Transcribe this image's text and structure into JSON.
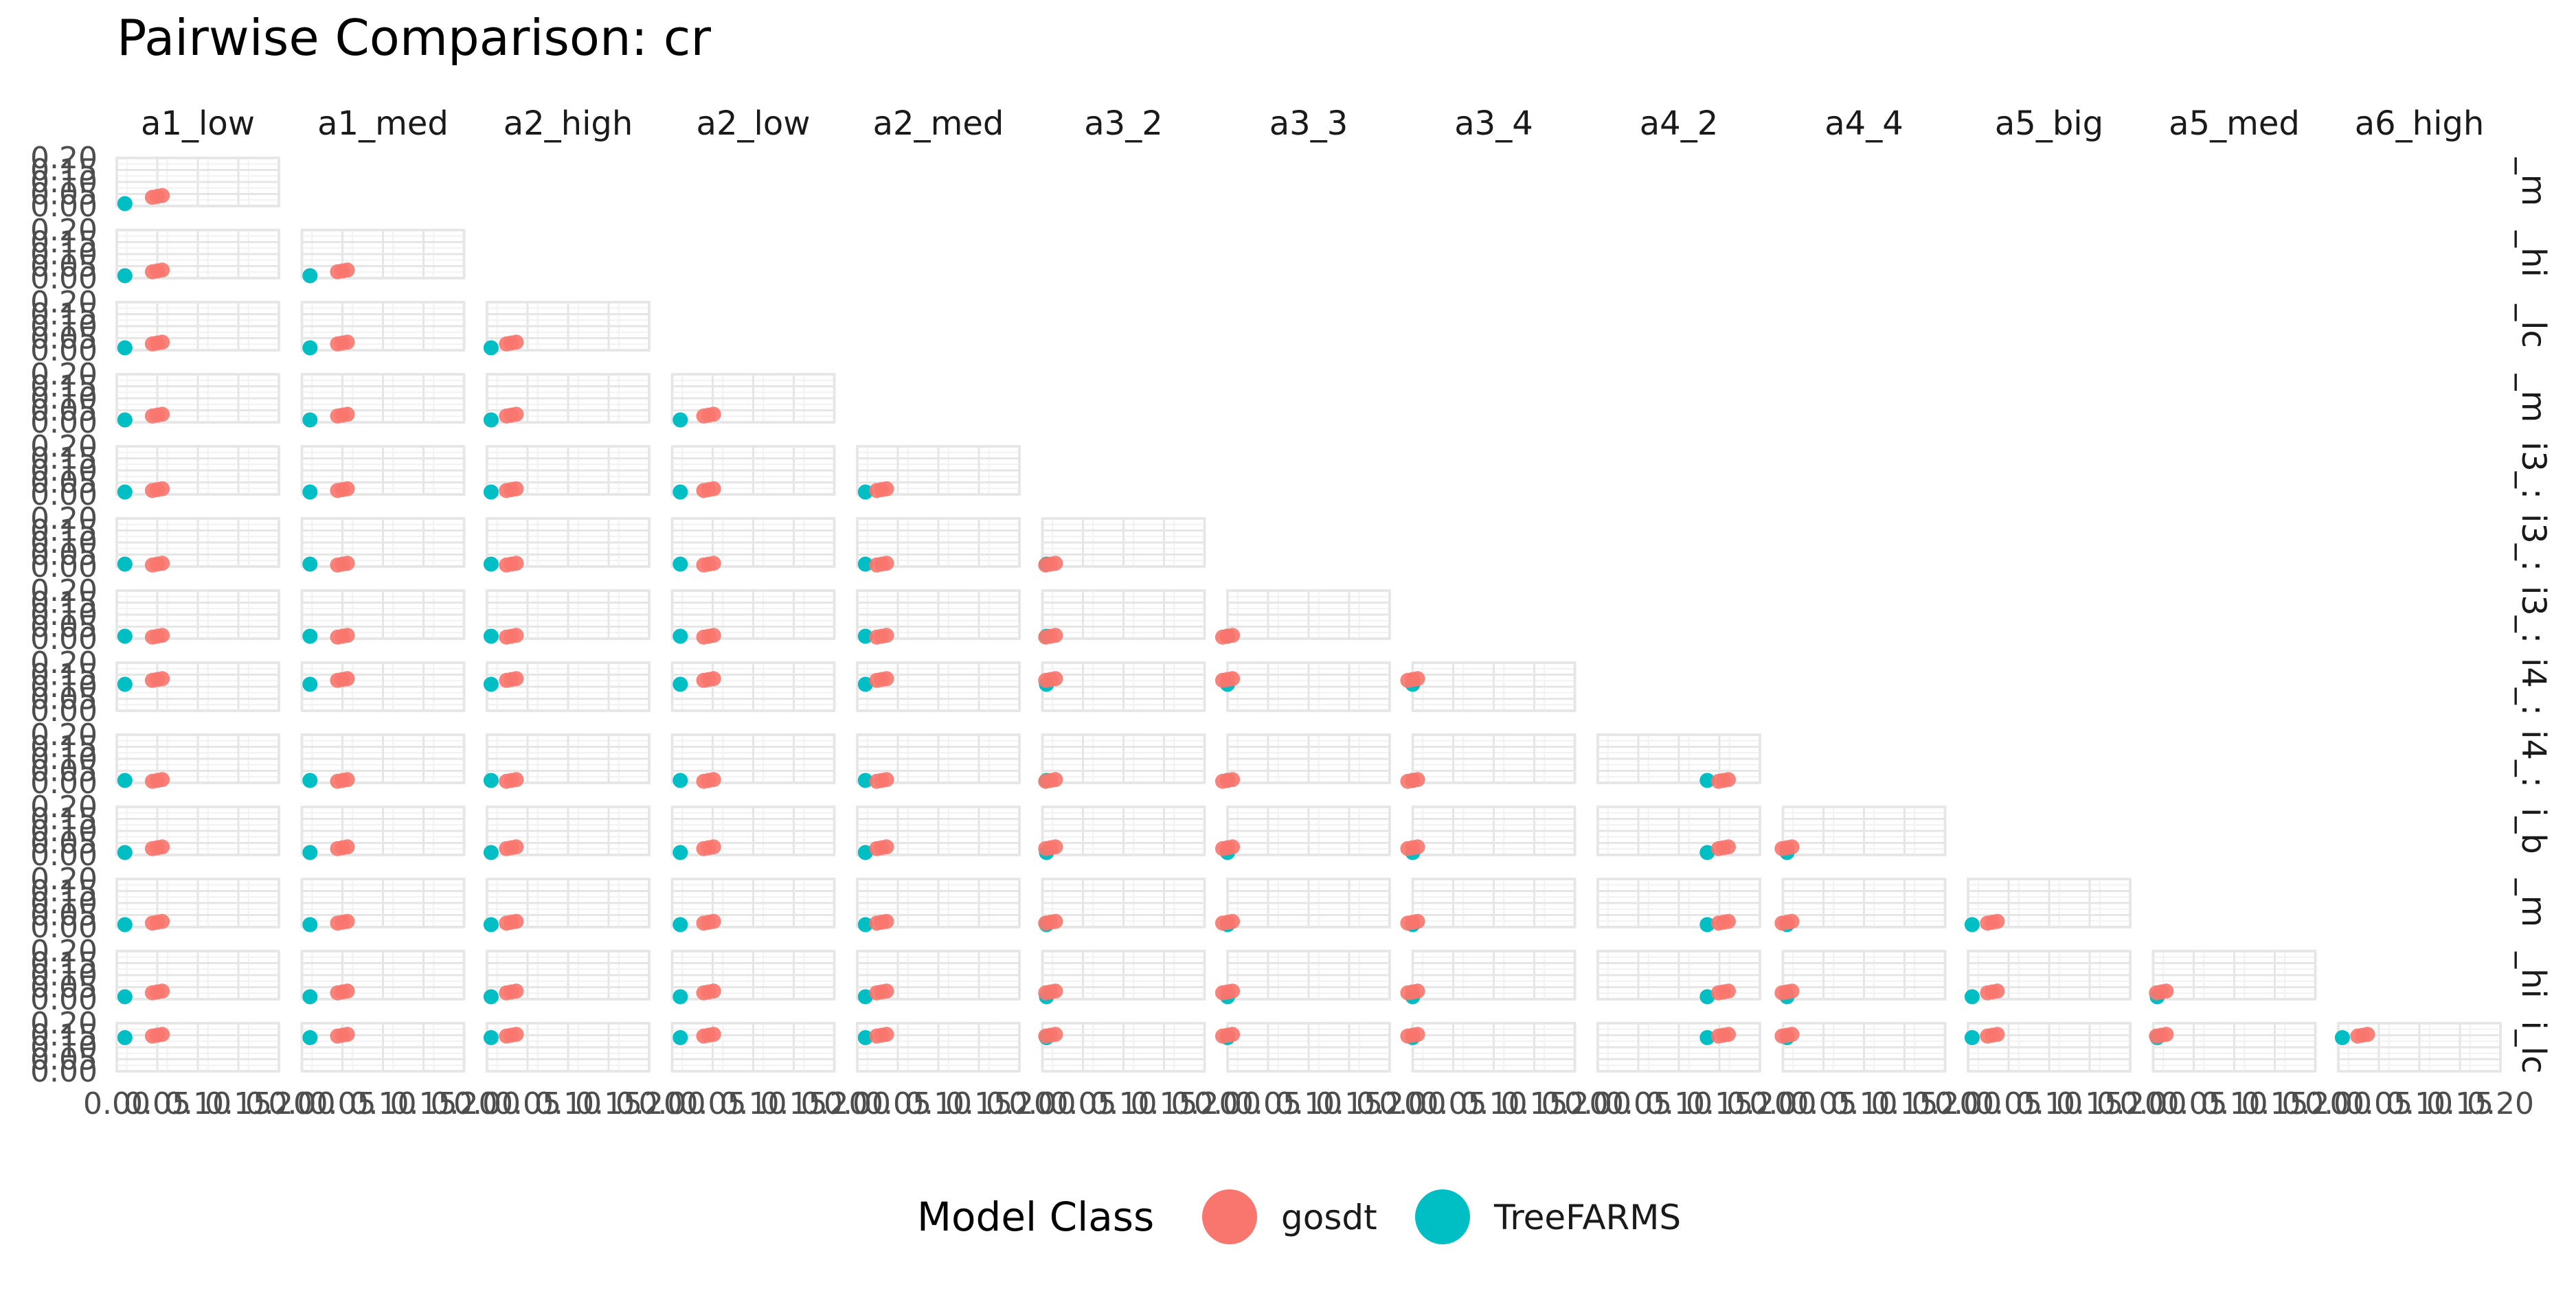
{
  "chart_data": {
    "type": "scatter",
    "title": "Pairwise Comparison: cr",
    "column_labels": [
      "a1_low",
      "a1_med",
      "a2_high",
      "a2_low",
      "a2_med",
      "a3_2",
      "a3_3",
      "a3_4",
      "a4_2",
      "a4_4",
      "a5_big",
      "a5_med",
      "a6_high"
    ],
    "row_labels": [
      "_m",
      "_hi",
      "_lc",
      "_m",
      "i3_:",
      "i3_:",
      "i3_:",
      "i4_:",
      "i4_:",
      "i_b",
      "_m",
      "_hi",
      "i_lc"
    ],
    "x_ticks": [
      "0.00",
      "0.05",
      "0.10",
      "0.15",
      "0.20"
    ],
    "y_ticks": [
      "0.00",
      "0.05",
      "0.10",
      "0.15",
      "0.20"
    ],
    "xlim": [
      0,
      0.2
    ],
    "ylim": [
      0,
      0.2
    ],
    "grid": true,
    "legend": {
      "title": "Model Class",
      "position": "bottom",
      "entries": [
        {
          "name": "gosdt",
          "color": "#F8766D"
        },
        {
          "name": "TreeFARMS",
          "color": "#00BFC4"
        }
      ]
    },
    "series_colors": {
      "gosdt": "#F8766D",
      "TreeFARMS": "#00BFC4"
    },
    "column_x": {
      "gosdt": [
        0.05,
        0.05,
        0.03,
        0.045,
        0.03,
        0.01,
        0.0,
        0.0,
        0.155,
        0.005,
        0.03,
        0.01,
        0.03
      ],
      "TreeFARMS": [
        0.01,
        0.01,
        0.005,
        0.01,
        0.01,
        0.005,
        0.0,
        0.0,
        0.135,
        0.005,
        0.005,
        0.005,
        0.005
      ]
    },
    "row_y": {
      "gosdt": [
        0.04,
        0.03,
        0.03,
        0.03,
        0.02,
        0.01,
        0.01,
        0.13,
        0.01,
        0.03,
        0.02,
        0.03,
        0.15
      ],
      "TreeFARMS": [
        0.01,
        0.01,
        0.01,
        0.01,
        0.01,
        0.01,
        0.01,
        0.11,
        0.01,
        0.01,
        0.01,
        0.01,
        0.14
      ]
    }
  }
}
